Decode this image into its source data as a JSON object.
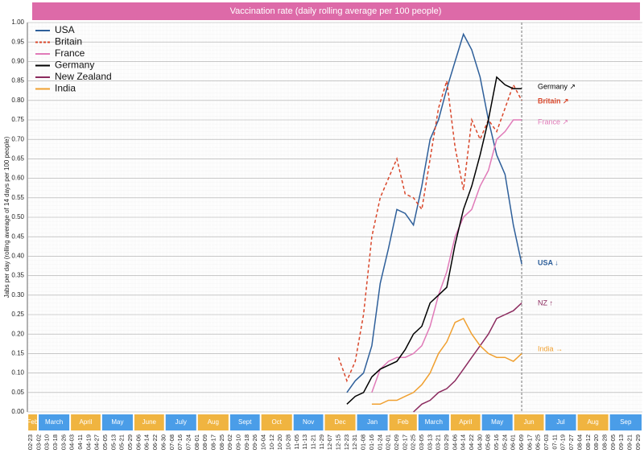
{
  "chart_data": {
    "type": "line",
    "title": "Vaccination rate (daily rolling average per 100 people)",
    "y_label": "Jabs per day (rolling average of 14 days per 100 people)",
    "categories": [
      "02-23",
      "03-02",
      "03-10",
      "03-18",
      "03-26",
      "04-03",
      "04-11",
      "04-19",
      "04-27",
      "05-05",
      "05-13",
      "05-21",
      "05-29",
      "06-06",
      "06-14",
      "06-22",
      "06-30",
      "07-08",
      "07-16",
      "07-24",
      "08-01",
      "08-09",
      "08-17",
      "08-25",
      "09-02",
      "09-10",
      "09-18",
      "09-26",
      "10-04",
      "10-12",
      "10-20",
      "10-28",
      "11-05",
      "11-13",
      "11-21",
      "11-29",
      "12-07",
      "12-15",
      "12-23",
      "12-31",
      "01-08",
      "01-16",
      "01-24",
      "02-01",
      "02-09",
      "02-17",
      "02-25",
      "03-05",
      "03-13",
      "03-21",
      "03-29",
      "04-06",
      "04-14",
      "04-22",
      "04-30",
      "05-08",
      "05-16",
      "05-24",
      "06-01",
      "06-09",
      "06-17",
      "06-25",
      "07-03",
      "07-11",
      "07-19",
      "07-27",
      "08-04",
      "08-12",
      "08-20",
      "08-28",
      "09-05",
      "09-13",
      "09-21",
      "09-29"
    ],
    "ylim": [
      0,
      1
    ],
    "yticks": [
      {
        "value": 0,
        "label": "0.00"
      },
      {
        "value": 0.05,
        "label": "0.05"
      },
      {
        "value": 0.1,
        "label": "0.10"
      },
      {
        "value": 0.15,
        "label": "0.15"
      },
      {
        "value": 0.2,
        "label": "0.20"
      },
      {
        "value": 0.25,
        "label": "0.25"
      },
      {
        "value": 0.3,
        "label": "0.30"
      },
      {
        "value": 0.35,
        "label": "0.35"
      },
      {
        "value": 0.4,
        "label": "0.40"
      },
      {
        "value": 0.45,
        "label": "0.45"
      },
      {
        "value": 0.5,
        "label": "0.50"
      },
      {
        "value": 0.55,
        "label": "0.55"
      },
      {
        "value": 0.6,
        "label": "0.60"
      },
      {
        "value": 0.65,
        "label": "0.65"
      },
      {
        "value": 0.7,
        "label": "0.70"
      },
      {
        "value": 0.75,
        "label": "0.75"
      },
      {
        "value": 0.8,
        "label": "0.80"
      },
      {
        "value": 0.85,
        "label": "0.85"
      },
      {
        "value": 0.9,
        "label": "0.90"
      },
      {
        "value": 0.95,
        "label": "0.95"
      },
      {
        "value": 1,
        "label": "1.00"
      }
    ],
    "grid": true,
    "legend": "top-left",
    "vline": "06-09",
    "series": [
      {
        "name": "USA",
        "color": "#2e5f9a",
        "dashed": false,
        "values": [
          null,
          null,
          null,
          null,
          null,
          null,
          null,
          null,
          null,
          null,
          null,
          null,
          null,
          null,
          null,
          null,
          null,
          null,
          null,
          null,
          null,
          null,
          null,
          null,
          null,
          null,
          null,
          null,
          null,
          null,
          null,
          null,
          null,
          null,
          null,
          null,
          null,
          null,
          0.05,
          0.08,
          0.1,
          0.17,
          0.33,
          0.42,
          0.52,
          0.51,
          0.48,
          0.58,
          0.7,
          0.75,
          0.83,
          0.9,
          0.97,
          0.93,
          0.86,
          0.75,
          0.66,
          0.61,
          0.48,
          0.38,
          null,
          null,
          null,
          null,
          null,
          null,
          null,
          null,
          null,
          null,
          null,
          null,
          null,
          null
        ]
      },
      {
        "name": "Britain",
        "color": "#d9472b",
        "dashed": true,
        "values": [
          null,
          null,
          null,
          null,
          null,
          null,
          null,
          null,
          null,
          null,
          null,
          null,
          null,
          null,
          null,
          null,
          null,
          null,
          null,
          null,
          null,
          null,
          null,
          null,
          null,
          null,
          null,
          null,
          null,
          null,
          null,
          null,
          null,
          null,
          null,
          null,
          null,
          0.14,
          0.08,
          0.13,
          0.25,
          0.45,
          0.55,
          0.6,
          0.65,
          0.56,
          0.55,
          0.52,
          0.65,
          0.78,
          0.85,
          0.68,
          0.57,
          0.75,
          0.7,
          0.75,
          0.72,
          0.78,
          0.84,
          0.8,
          null,
          null,
          null,
          null,
          null,
          null,
          null,
          null,
          null,
          null,
          null,
          null,
          null,
          null
        ]
      },
      {
        "name": "France",
        "color": "#e07ab8",
        "dashed": false,
        "values": [
          null,
          null,
          null,
          null,
          null,
          null,
          null,
          null,
          null,
          null,
          null,
          null,
          null,
          null,
          null,
          null,
          null,
          null,
          null,
          null,
          null,
          null,
          null,
          null,
          null,
          null,
          null,
          null,
          null,
          null,
          null,
          null,
          null,
          null,
          null,
          null,
          null,
          null,
          null,
          null,
          null,
          0.05,
          0.11,
          0.13,
          0.14,
          0.14,
          0.15,
          0.17,
          0.22,
          0.3,
          0.36,
          0.45,
          0.5,
          0.52,
          0.58,
          0.62,
          0.7,
          0.72,
          0.75,
          0.75,
          null,
          null,
          null,
          null,
          null,
          null,
          null,
          null,
          null,
          null,
          null,
          null,
          null,
          null
        ]
      },
      {
        "name": "Germany",
        "color": "#000000",
        "dashed": false,
        "values": [
          null,
          null,
          null,
          null,
          null,
          null,
          null,
          null,
          null,
          null,
          null,
          null,
          null,
          null,
          null,
          null,
          null,
          null,
          null,
          null,
          null,
          null,
          null,
          null,
          null,
          null,
          null,
          null,
          null,
          null,
          null,
          null,
          null,
          null,
          null,
          null,
          null,
          null,
          0.02,
          0.04,
          0.05,
          0.09,
          0.11,
          0.12,
          0.13,
          0.16,
          0.2,
          0.22,
          0.28,
          0.3,
          0.32,
          0.43,
          0.52,
          0.58,
          0.66,
          0.75,
          0.86,
          0.84,
          0.83,
          0.83,
          null,
          null,
          null,
          null,
          null,
          null,
          null,
          null,
          null,
          null,
          null,
          null,
          null,
          null
        ]
      },
      {
        "name": "New Zealand",
        "color": "#8b2a5e",
        "dashed": false,
        "values": [
          null,
          null,
          null,
          null,
          null,
          null,
          null,
          null,
          null,
          null,
          null,
          null,
          null,
          null,
          null,
          null,
          null,
          null,
          null,
          null,
          null,
          null,
          null,
          null,
          null,
          null,
          null,
          null,
          null,
          null,
          null,
          null,
          null,
          null,
          null,
          null,
          null,
          null,
          null,
          null,
          null,
          null,
          null,
          null,
          null,
          null,
          0,
          0.02,
          0.03,
          0.05,
          0.06,
          0.08,
          0.11,
          0.14,
          0.17,
          0.2,
          0.24,
          0.25,
          0.26,
          0.28,
          null,
          null,
          null,
          null,
          null,
          null,
          null,
          null,
          null,
          null,
          null,
          null,
          null,
          null
        ]
      },
      {
        "name": "India",
        "color": "#f0a030",
        "dashed": false,
        "values": [
          null,
          null,
          null,
          null,
          null,
          null,
          null,
          null,
          null,
          null,
          null,
          null,
          null,
          null,
          null,
          null,
          null,
          null,
          null,
          null,
          null,
          null,
          null,
          null,
          null,
          null,
          null,
          null,
          null,
          null,
          null,
          null,
          null,
          null,
          null,
          null,
          null,
          null,
          null,
          null,
          null,
          0.02,
          0.02,
          0.03,
          0.03,
          0.04,
          0.05,
          0.07,
          0.1,
          0.15,
          0.18,
          0.23,
          0.24,
          0.2,
          0.17,
          0.15,
          0.14,
          0.14,
          0.13,
          0.15,
          null,
          null,
          null,
          null,
          null,
          null,
          null,
          null,
          null,
          null,
          null,
          null,
          null,
          null
        ]
      }
    ],
    "annotations": [
      {
        "text": "Germany ↗",
        "color": "#000000",
        "bold": false
      },
      {
        "text": "Britain ↗",
        "color": "#d9472b",
        "bold": true
      },
      {
        "text": "France ↗",
        "color": "#e07ab8",
        "bold": false
      },
      {
        "text": "USA ↓",
        "color": "#2e5f9a",
        "bold": true
      },
      {
        "text": "NZ ↑",
        "color": "#8b2a5e",
        "bold": false
      },
      {
        "text": "India →",
        "color": "#f0a030",
        "bold": false
      }
    ],
    "months": [
      {
        "label": "Feb",
        "color": "#f0b440"
      },
      {
        "label": "March",
        "color": "#4a9de8"
      },
      {
        "label": "April",
        "color": "#f0b440"
      },
      {
        "label": "May",
        "color": "#4a9de8"
      },
      {
        "label": "June",
        "color": "#f0b440"
      },
      {
        "label": "July",
        "color": "#4a9de8"
      },
      {
        "label": "Aug",
        "color": "#f0b440"
      },
      {
        "label": "Sept",
        "color": "#4a9de8"
      },
      {
        "label": "Oct",
        "color": "#f0b440"
      },
      {
        "label": "Nov",
        "color": "#4a9de8"
      },
      {
        "label": "Dec",
        "color": "#f0b440"
      },
      {
        "label": "Jan",
        "color": "#4a9de8"
      },
      {
        "label": "Feb",
        "color": "#f0b440"
      },
      {
        "label": "March",
        "color": "#4a9de8"
      },
      {
        "label": "April",
        "color": "#f0b440"
      },
      {
        "label": "May",
        "color": "#4a9de8"
      },
      {
        "label": "Jun",
        "color": "#f0b440"
      },
      {
        "label": "Jul",
        "color": "#4a9de8"
      },
      {
        "label": "Aug",
        "color": "#f0b440"
      },
      {
        "label": "Sep",
        "color": "#4a9de8"
      }
    ]
  }
}
